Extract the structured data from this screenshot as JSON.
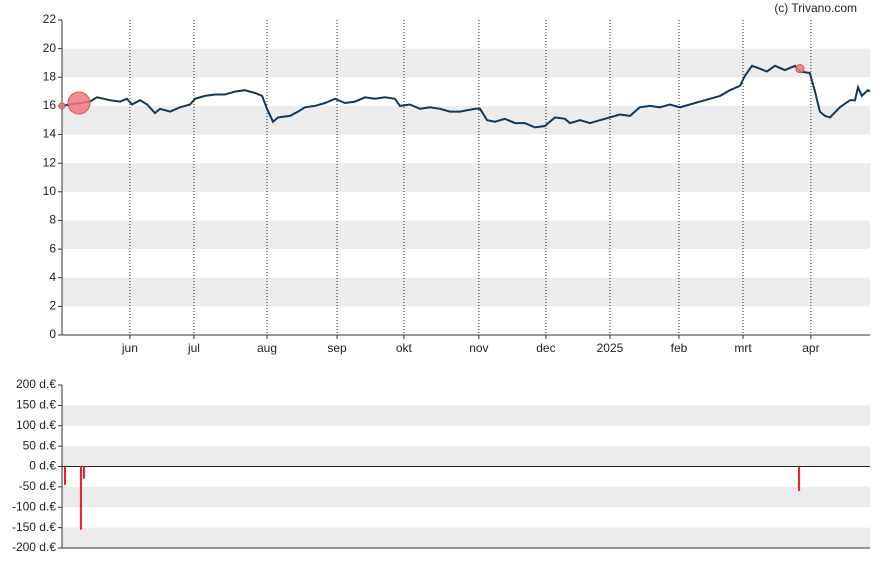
{
  "watermark": "(c) Trivano.com",
  "chart_data": [
    {
      "type": "line",
      "x": [
        0,
        3.7,
        8.4,
        13,
        16.3,
        22.3,
        27,
        30.2,
        32.6,
        36.3,
        39.6,
        43.3,
        45.6,
        50.3,
        54.9,
        59.6,
        61.9,
        66.5,
        71.2,
        75.8,
        80.5,
        85.1,
        89.8,
        93.1,
        95.4,
        98.2,
        100.5,
        106.1,
        109.8,
        113.1,
        117.7,
        122.4,
        127,
        131.7,
        136.3,
        141,
        145.6,
        150.3,
        154.9,
        157.3,
        161.9,
        166.6,
        171.2,
        175.9,
        180.5,
        185.2,
        192.2,
        194.5,
        197.8,
        201.5,
        206.1,
        210.8,
        215.4,
        220.1,
        224.7,
        229.4,
        234,
        236.4,
        241,
        245.7,
        250.3,
        255,
        259.6,
        264.3,
        268.9,
        273.6,
        278.2,
        282.9,
        287.5,
        292.2,
        296.9,
        301.5,
        306.2,
        310.8,
        315.5,
        317.8,
        321.1,
        324.8,
        328,
        331.8,
        336.4,
        341.1,
        343.4,
        348,
        350.4,
        352.7,
        355,
        357.4,
        362,
        366.7,
        369,
        370.4,
        372.2,
        375,
        376
      ],
      "values": [
        16.0,
        16.1,
        16.2,
        16.3,
        16.6,
        16.4,
        16.3,
        16.5,
        16.1,
        16.4,
        16.1,
        15.5,
        15.8,
        15.6,
        15.9,
        16.1,
        16.5,
        16.7,
        16.8,
        16.8,
        17.0,
        17.1,
        16.9,
        16.7,
        15.8,
        14.9,
        15.2,
        15.3,
        15.6,
        15.9,
        16.0,
        16.2,
        16.5,
        16.2,
        16.3,
        16.6,
        16.5,
        16.6,
        16.5,
        16.0,
        16.1,
        15.8,
        15.9,
        15.8,
        15.6,
        15.6,
        15.8,
        15.8,
        15.0,
        14.9,
        15.1,
        14.8,
        14.8,
        14.5,
        14.6,
        15.2,
        15.1,
        14.8,
        15.0,
        14.8,
        15.0,
        15.2,
        15.4,
        15.3,
        15.9,
        16.0,
        15.9,
        16.1,
        15.9,
        16.1,
        16.3,
        16.5,
        16.7,
        17.1,
        17.4,
        18.1,
        18.8,
        18.6,
        18.4,
        18.8,
        18.5,
        18.8,
        18.4,
        18.3,
        17.0,
        15.6,
        15.3,
        15.2,
        15.9,
        16.4,
        16.4,
        17.3,
        16.7,
        17.1,
        17.0
      ],
      "color": "#12395a",
      "markers": {
        "x": [
          0,
          7.9,
          343.4
        ],
        "values": [
          16.0,
          16.2,
          18.6
        ],
        "sizes": [
          3,
          11,
          4
        ],
        "color": "#f07a80"
      },
      "xlim": [
        0,
        376
      ],
      "xticks": [
        {
          "value": 31.6,
          "label": "jun"
        },
        {
          "value": 61.4,
          "label": "jul"
        },
        {
          "value": 95.4,
          "label": "aug"
        },
        {
          "value": 128,
          "label": "sep"
        },
        {
          "value": 159.1,
          "label": "okt"
        },
        {
          "value": 194,
          "label": "nov"
        },
        {
          "value": 225.2,
          "label": "dec"
        },
        {
          "value": 255,
          "label": "2025"
        },
        {
          "value": 287.1,
          "label": "feb"
        },
        {
          "value": 316.9,
          "label": "mrt"
        },
        {
          "value": 348.5,
          "label": "apr"
        }
      ],
      "ylim": [
        0,
        22
      ],
      "yticks": [
        0,
        2,
        4,
        6,
        8,
        10,
        12,
        14,
        16,
        18,
        20,
        22
      ],
      "grid": true
    },
    {
      "type": "bar",
      "x": [
        1.4,
        8.8,
        10.2,
        343
      ],
      "values": [
        -45,
        -155,
        -30,
        -60
      ],
      "color": "#e8202a",
      "xlim": [
        0,
        376
      ],
      "ylim": [
        -200,
        200
      ],
      "yticks": [
        {
          "value": -200,
          "label": "-200 d.€"
        },
        {
          "value": -150,
          "label": "-150 d.€"
        },
        {
          "value": -100,
          "label": "-100 d.€"
        },
        {
          "value": -50,
          "label": "-50 d.€"
        },
        {
          "value": 0,
          "label": "0 d.€"
        },
        {
          "value": 50,
          "label": "50 d.€"
        },
        {
          "value": 100,
          "label": "100 d.€"
        },
        {
          "value": 150,
          "label": "150 d.€"
        },
        {
          "value": 200,
          "label": "200 d.€"
        }
      ],
      "grid": true
    }
  ]
}
